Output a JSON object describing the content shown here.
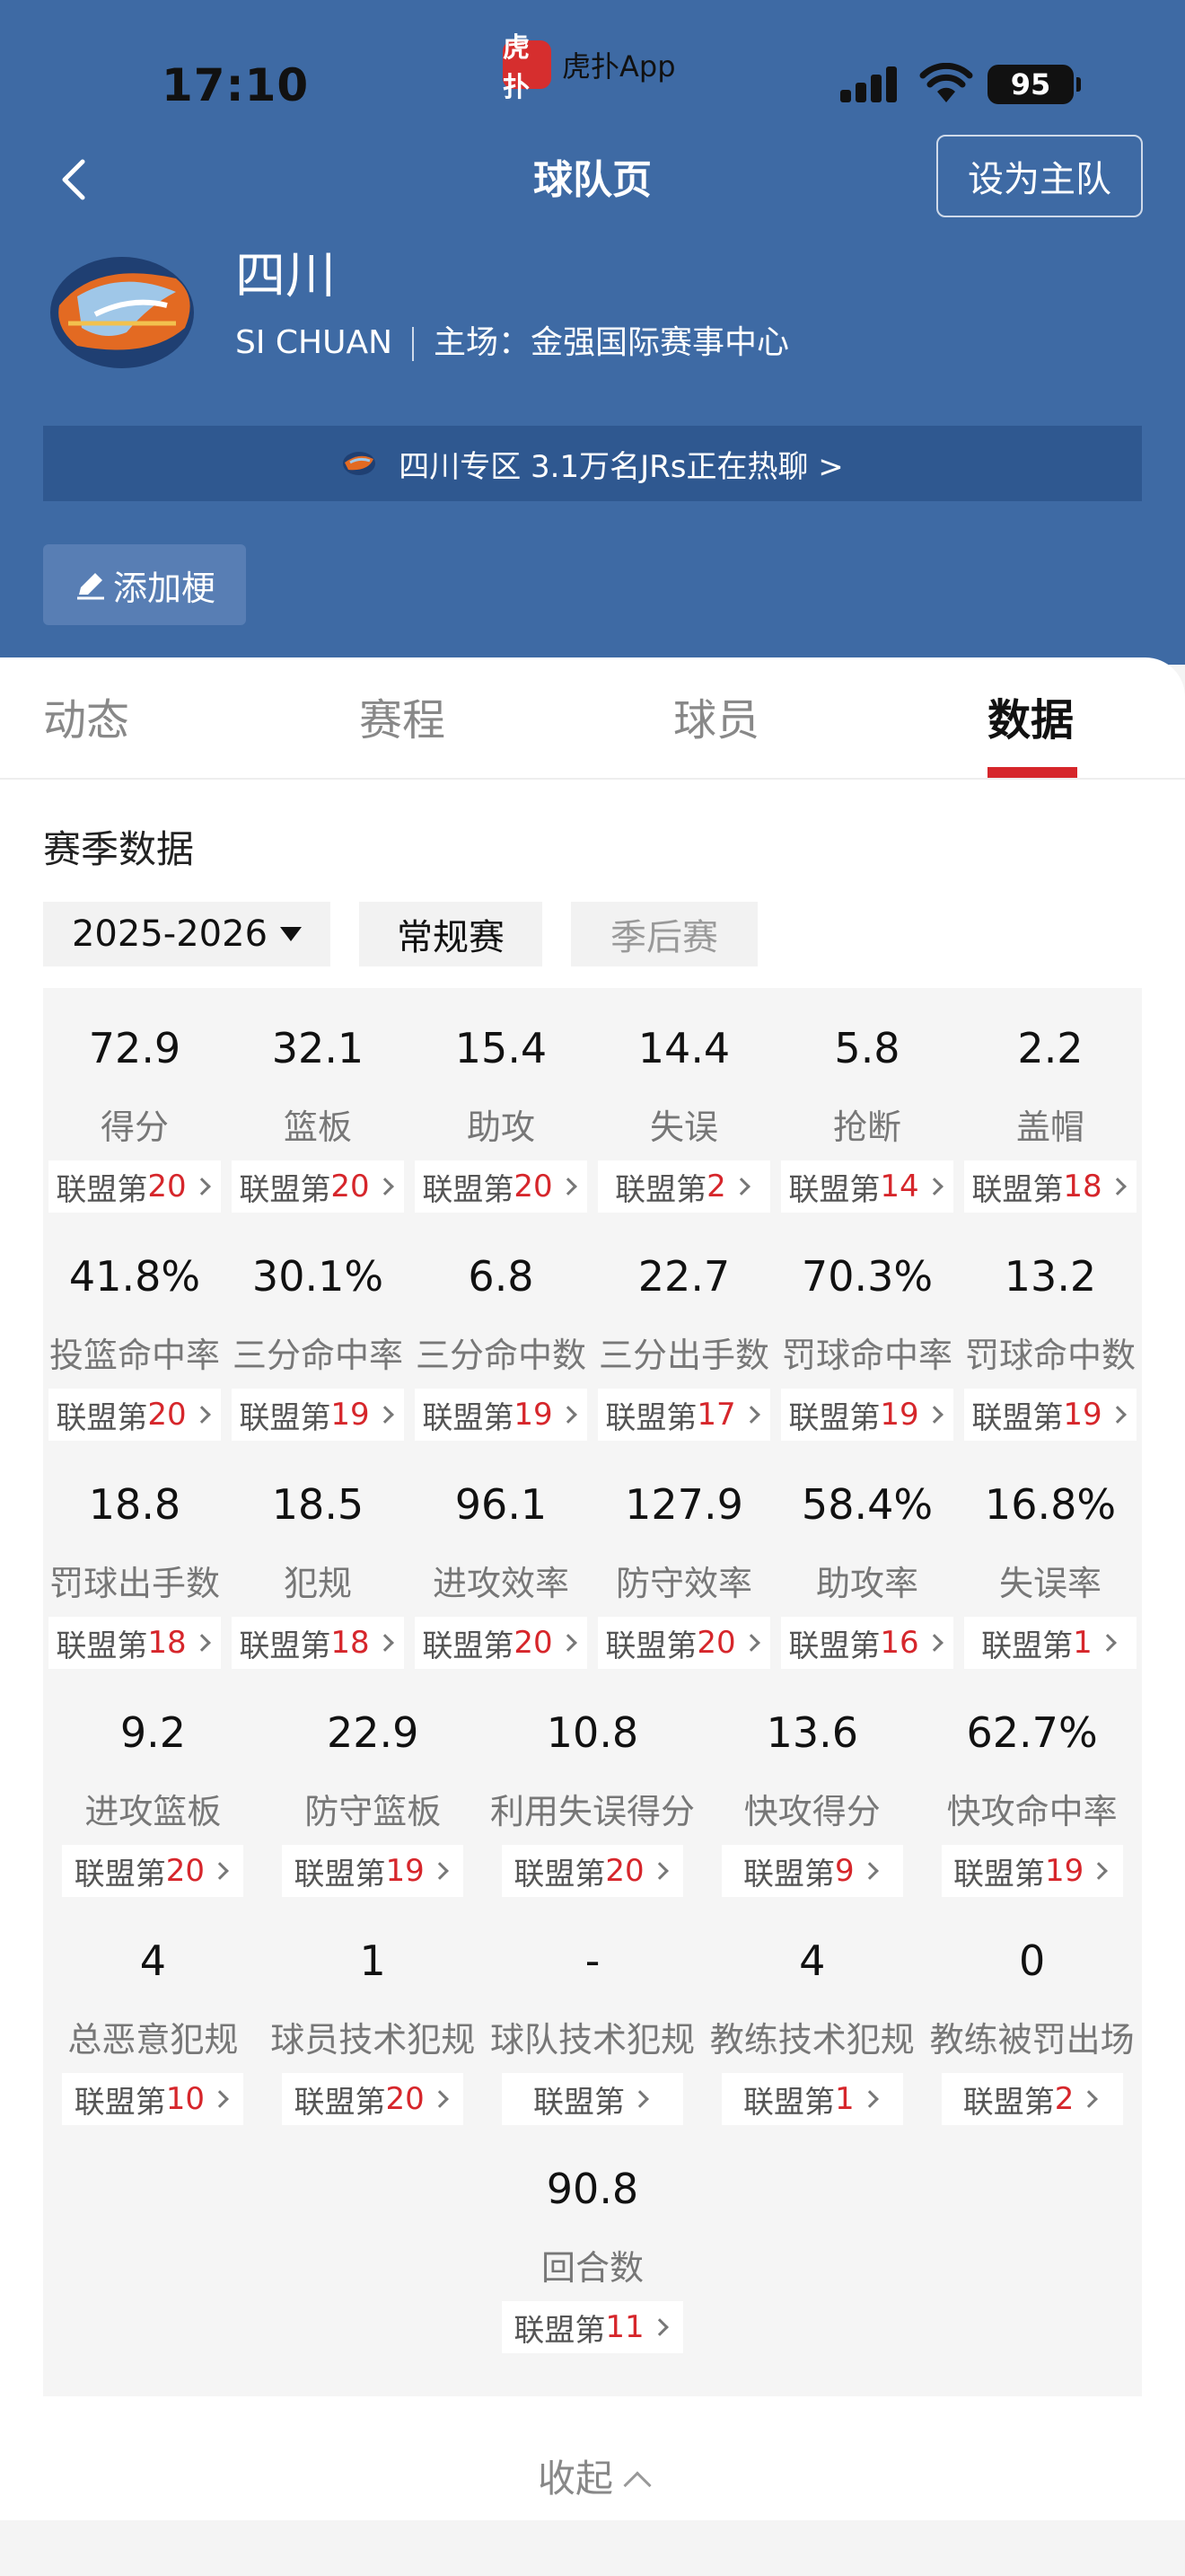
{
  "status_bar": {
    "time": "17:10",
    "app_logo_text": "虎扑",
    "app_name": "虎扑App",
    "battery": "95"
  },
  "nav": {
    "title": "球队页",
    "set_home": "设为主队"
  },
  "team": {
    "name": "四川",
    "en_name": "SI CHUAN",
    "home_label": "主场：金强国际赛事中心"
  },
  "banner": {
    "text": "四川专区 3.1万名JRs正在热聊 >"
  },
  "add_button": {
    "label": "添加梗"
  },
  "tabs": [
    {
      "label": "动态"
    },
    {
      "label": "赛程"
    },
    {
      "label": "球员"
    },
    {
      "label": "数据"
    }
  ],
  "season": {
    "title": "赛季数据",
    "selected": "2025-2026",
    "types": [
      "常规赛",
      "季后赛"
    ]
  },
  "stats_rows": [
    [
      {
        "value": "72.9",
        "label": "得分",
        "rank_prefix": "联盟第",
        "rank": "20"
      },
      {
        "value": "32.1",
        "label": "篮板",
        "rank_prefix": "联盟第",
        "rank": "20"
      },
      {
        "value": "15.4",
        "label": "助攻",
        "rank_prefix": "联盟第",
        "rank": "20"
      },
      {
        "value": "14.4",
        "label": "失误",
        "rank_prefix": "联盟第",
        "rank": "2"
      },
      {
        "value": "5.8",
        "label": "抢断",
        "rank_prefix": "联盟第",
        "rank": "14"
      },
      {
        "value": "2.2",
        "label": "盖帽",
        "rank_prefix": "联盟第",
        "rank": "18"
      }
    ],
    [
      {
        "value": "41.8%",
        "label": "投篮命中率",
        "rank_prefix": "联盟第",
        "rank": "20"
      },
      {
        "value": "30.1%",
        "label": "三分命中率",
        "rank_prefix": "联盟第",
        "rank": "19"
      },
      {
        "value": "6.8",
        "label": "三分命中数",
        "rank_prefix": "联盟第",
        "rank": "19"
      },
      {
        "value": "22.7",
        "label": "三分出手数",
        "rank_prefix": "联盟第",
        "rank": "17"
      },
      {
        "value": "70.3%",
        "label": "罚球命中率",
        "rank_prefix": "联盟第",
        "rank": "19"
      },
      {
        "value": "13.2",
        "label": "罚球命中数",
        "rank_prefix": "联盟第",
        "rank": "19"
      }
    ],
    [
      {
        "value": "18.8",
        "label": "罚球出手数",
        "rank_prefix": "联盟第",
        "rank": "18"
      },
      {
        "value": "18.5",
        "label": "犯规",
        "rank_prefix": "联盟第",
        "rank": "18"
      },
      {
        "value": "96.1",
        "label": "进攻效率",
        "rank_prefix": "联盟第",
        "rank": "20"
      },
      {
        "value": "127.9",
        "label": "防守效率",
        "rank_prefix": "联盟第",
        "rank": "20"
      },
      {
        "value": "58.4%",
        "label": "助攻率",
        "rank_prefix": "联盟第",
        "rank": "16"
      },
      {
        "value": "16.8%",
        "label": "失误率",
        "rank_prefix": "联盟第",
        "rank": "1"
      }
    ],
    [
      {
        "value": "9.2",
        "label": "进攻篮板",
        "rank_prefix": "联盟第",
        "rank": "20"
      },
      {
        "value": "22.9",
        "label": "防守篮板",
        "rank_prefix": "联盟第",
        "rank": "19"
      },
      {
        "value": "10.8",
        "label": "利用失误得分",
        "rank_prefix": "联盟第",
        "rank": "20"
      },
      {
        "value": "13.6",
        "label": "快攻得分",
        "rank_prefix": "联盟第",
        "rank": "9"
      },
      {
        "value": "62.7%",
        "label": "快攻命中率",
        "rank_prefix": "联盟第",
        "rank": "19"
      }
    ],
    [
      {
        "value": "4",
        "label": "总恶意犯规",
        "rank_prefix": "联盟第",
        "rank": "10"
      },
      {
        "value": "1",
        "label": "球员技术犯规",
        "rank_prefix": "联盟第",
        "rank": "20"
      },
      {
        "value": "-",
        "label": "球队技术犯规",
        "rank_prefix": "联盟第",
        "rank": ""
      },
      {
        "value": "4",
        "label": "教练技术犯规",
        "rank_prefix": "联盟第",
        "rank": "1"
      },
      {
        "value": "0",
        "label": "教练被罚出场",
        "rank_prefix": "联盟第",
        "rank": "2"
      }
    ],
    [
      {
        "value": "90.8",
        "label": "回合数",
        "rank_prefix": "联盟第",
        "rank": "11"
      }
    ]
  ],
  "collapse_label": "收起",
  "colors": {
    "header_bg": "#3e6aa4",
    "accent_red": "#d6262b",
    "banner_bg": "#2f5890"
  }
}
